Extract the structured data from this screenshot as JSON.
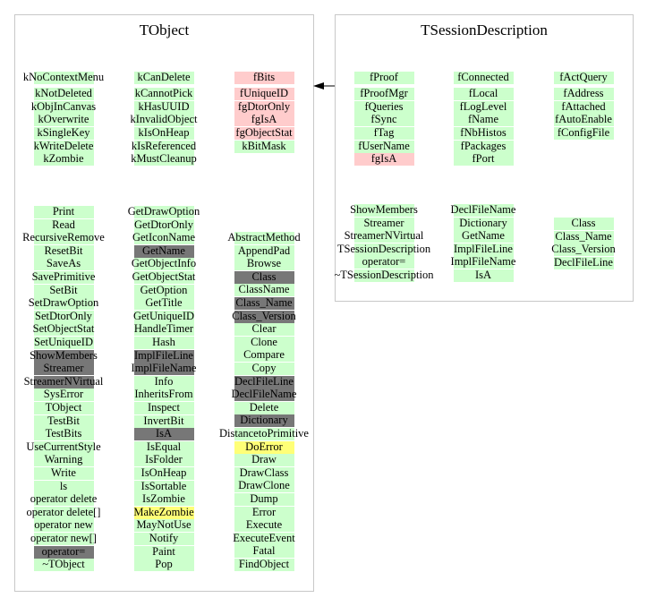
{
  "colors": {
    "g": "#ccffcc",
    "p": "#ffcccc",
    "d": "#777777",
    "y": "#ffff77"
  },
  "classes": [
    {
      "title": "TObject",
      "columns": [
        {
          "group": "members",
          "items": [
            [
              "kNoContextMenu",
              "g"
            ],
            [
              "kNotDeleted",
              "g"
            ],
            [
              "kObjInCanvas",
              "g"
            ],
            [
              "kOverwrite",
              "g"
            ],
            [
              "kSingleKey",
              "g"
            ],
            [
              "kWriteDelete",
              "g"
            ],
            [
              "kZombie",
              "g"
            ]
          ]
        },
        {
          "group": "members",
          "items": [
            [
              "kCanDelete",
              "g"
            ],
            [
              "kCannotPick",
              "g"
            ],
            [
              "kHasUUID",
              "g"
            ],
            [
              "kInvalidObject",
              "g"
            ],
            [
              "kIsOnHeap",
              "g"
            ],
            [
              "kIsReferenced",
              "g"
            ],
            [
              "kMustCleanup",
              "g"
            ]
          ]
        },
        {
          "group": "members",
          "items": [
            [
              "fBits",
              "p"
            ],
            [
              "fUniqueID",
              "p"
            ],
            [
              "fgDtorOnly",
              "p"
            ],
            [
              "fgIsA",
              "p"
            ],
            [
              "fgObjectStat",
              "p"
            ],
            [
              "kBitMask",
              "g"
            ]
          ]
        },
        {
          "group": "methods",
          "items": [
            [
              "Print",
              "g"
            ],
            [
              "Read",
              "g"
            ],
            [
              "RecursiveRemove",
              "g"
            ],
            [
              "ResetBit",
              "g"
            ],
            [
              "SaveAs",
              "g"
            ],
            [
              "SavePrimitive",
              "g"
            ],
            [
              "SetBit",
              "g"
            ],
            [
              "SetDrawOption",
              "g"
            ],
            [
              "SetDtorOnly",
              "g"
            ],
            [
              "SetObjectStat",
              "g"
            ],
            [
              "SetUniqueID",
              "g"
            ],
            [
              "ShowMembers",
              "d"
            ],
            [
              "Streamer",
              "d"
            ],
            [
              "StreamerNVirtual",
              "d"
            ],
            [
              "SysError",
              "g"
            ],
            [
              "TObject",
              "g"
            ],
            [
              "TestBit",
              "g"
            ],
            [
              "TestBits",
              "g"
            ],
            [
              "UseCurrentStyle",
              "g"
            ],
            [
              "Warning",
              "g"
            ],
            [
              "Write",
              "g"
            ],
            [
              "ls",
              "g"
            ],
            [
              "operator delete",
              "g"
            ],
            [
              "operator delete[]",
              "g"
            ],
            [
              "operator new",
              "g"
            ],
            [
              "operator new[]",
              "g"
            ],
            [
              "operator=",
              "d"
            ],
            [
              "~TObject",
              "g"
            ]
          ]
        },
        {
          "group": "methods",
          "items": [
            [
              "GetDrawOption",
              "g"
            ],
            [
              "GetDtorOnly",
              "g"
            ],
            [
              "GetIconName",
              "g"
            ],
            [
              "GetName",
              "d"
            ],
            [
              "GetObjectInfo",
              "g"
            ],
            [
              "GetObjectStat",
              "g"
            ],
            [
              "GetOption",
              "g"
            ],
            [
              "GetTitle",
              "g"
            ],
            [
              "GetUniqueID",
              "g"
            ],
            [
              "HandleTimer",
              "g"
            ],
            [
              "Hash",
              "g"
            ],
            [
              "ImplFileLine",
              "d"
            ],
            [
              "ImplFileName",
              "d"
            ],
            [
              "Info",
              "g"
            ],
            [
              "InheritsFrom",
              "g"
            ],
            [
              "Inspect",
              "g"
            ],
            [
              "InvertBit",
              "g"
            ],
            [
              "IsA",
              "d"
            ],
            [
              "IsEqual",
              "g"
            ],
            [
              "IsFolder",
              "g"
            ],
            [
              "IsOnHeap",
              "g"
            ],
            [
              "IsSortable",
              "g"
            ],
            [
              "IsZombie",
              "g"
            ],
            [
              "MakeZombie",
              "y"
            ],
            [
              "MayNotUse",
              "g"
            ],
            [
              "Notify",
              "g"
            ],
            [
              "Paint",
              "g"
            ],
            [
              "Pop",
              "g"
            ]
          ]
        },
        {
          "group": "methods",
          "items": [
            [
              "AbstractMethod",
              "g"
            ],
            [
              "AppendPad",
              "g"
            ],
            [
              "Browse",
              "g"
            ],
            [
              "Class",
              "d"
            ],
            [
              "ClassName",
              "g"
            ],
            [
              "Class_Name",
              "d"
            ],
            [
              "Class_Version",
              "d"
            ],
            [
              "Clear",
              "g"
            ],
            [
              "Clone",
              "g"
            ],
            [
              "Compare",
              "g"
            ],
            [
              "Copy",
              "g"
            ],
            [
              "DeclFileLine",
              "d"
            ],
            [
              "DeclFileName",
              "d"
            ],
            [
              "Delete",
              "g"
            ],
            [
              "Dictionary",
              "d"
            ],
            [
              "DistancetoPrimitive",
              "g"
            ],
            [
              "DoError",
              "y"
            ],
            [
              "Draw",
              "g"
            ],
            [
              "DrawClass",
              "g"
            ],
            [
              "DrawClone",
              "g"
            ],
            [
              "Dump",
              "g"
            ],
            [
              "Error",
              "g"
            ],
            [
              "Execute",
              "g"
            ],
            [
              "ExecuteEvent",
              "g"
            ],
            [
              "Fatal",
              "g"
            ],
            [
              "FindObject",
              "g"
            ]
          ]
        }
      ]
    },
    {
      "title": "TSessionDescription",
      "columns": [
        {
          "group": "members",
          "items": [
            [
              "fProof",
              "g"
            ],
            [
              "fProofMgr",
              "g"
            ],
            [
              "fQueries",
              "g"
            ],
            [
              "fSync",
              "g"
            ],
            [
              "fTag",
              "g"
            ],
            [
              "fUserName",
              "g"
            ],
            [
              "fgIsA",
              "p"
            ]
          ]
        },
        {
          "group": "members",
          "items": [
            [
              "fConnected",
              "g"
            ],
            [
              "fLocal",
              "g"
            ],
            [
              "fLogLevel",
              "g"
            ],
            [
              "fName",
              "g"
            ],
            [
              "fNbHistos",
              "g"
            ],
            [
              "fPackages",
              "g"
            ],
            [
              "fPort",
              "g"
            ]
          ]
        },
        {
          "group": "members",
          "items": [
            [
              "fActQuery",
              "g"
            ],
            [
              "fAddress",
              "g"
            ],
            [
              "fAttached",
              "g"
            ],
            [
              "fAutoEnable",
              "g"
            ],
            [
              "fConfigFile",
              "g"
            ]
          ]
        },
        {
          "group": "methods",
          "items": [
            [
              "ShowMembers",
              "g"
            ],
            [
              "Streamer",
              "g"
            ],
            [
              "StreamerNVirtual",
              "g"
            ],
            [
              "TSessionDescription",
              "g"
            ],
            [
              "operator=",
              "g"
            ],
            [
              "~TSessionDescription",
              "g"
            ]
          ]
        },
        {
          "group": "methods",
          "items": [
            [
              "DeclFileName",
              "g"
            ],
            [
              "Dictionary",
              "g"
            ],
            [
              "GetName",
              "g"
            ],
            [
              "ImplFileLine",
              "g"
            ],
            [
              "ImplFileName",
              "g"
            ],
            [
              "IsA",
              "g"
            ]
          ]
        },
        {
          "group": "methods",
          "items": [
            [
              "Class",
              "g"
            ],
            [
              "Class_Name",
              "g"
            ],
            [
              "Class_Version",
              "g"
            ],
            [
              "DeclFileLine",
              "g"
            ]
          ]
        }
      ]
    }
  ],
  "inheritance": {
    "from": "TSessionDescription",
    "to": "TObject"
  }
}
